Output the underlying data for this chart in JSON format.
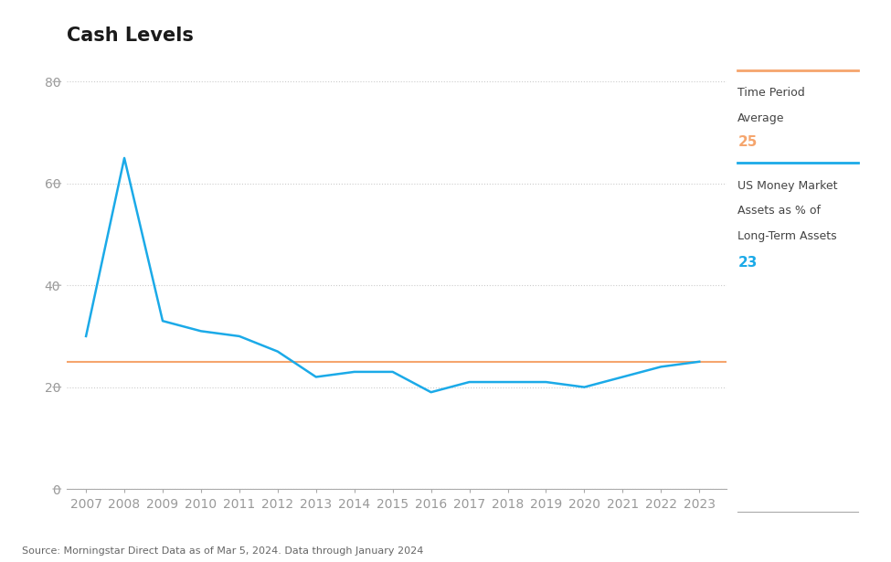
{
  "title": "Cash Levels",
  "years": [
    2007,
    2008,
    2009,
    2010,
    2011,
    2012,
    2013,
    2014,
    2015,
    2016,
    2017,
    2018,
    2019,
    2020,
    2021,
    2022,
    2023
  ],
  "values": [
    30,
    65,
    33,
    31,
    30,
    27,
    22,
    23,
    23,
    19,
    21,
    21,
    21,
    20,
    22,
    24,
    25
  ],
  "average_value": 25,
  "current_value": 23,
  "line_color": "#1BAAE8",
  "average_color": "#F5A56D",
  "ylim": [
    0,
    85
  ],
  "yticks": [
    0,
    20,
    40,
    60,
    80
  ],
  "xlabel": "",
  "ylabel": "",
  "source_text": "Source: Morningstar Direct Data as of Mar 5, 2024. Data through January 2024",
  "legend_label1_line1": "Time Period",
  "legend_label1_line2": "Average",
  "legend_value1": "25",
  "legend_label2_line1": "US Money Market",
  "legend_label2_line2": "Assets as % of",
  "legend_label2_line3": "Long-Term Assets",
  "legend_value2": "23",
  "background_color": "#ffffff",
  "grid_color": "#cccccc",
  "title_fontsize": 15,
  "axis_fontsize": 10,
  "source_fontsize": 8,
  "legend_text_color": "#444444",
  "tick_color": "#999999",
  "spine_color": "#aaaaaa"
}
